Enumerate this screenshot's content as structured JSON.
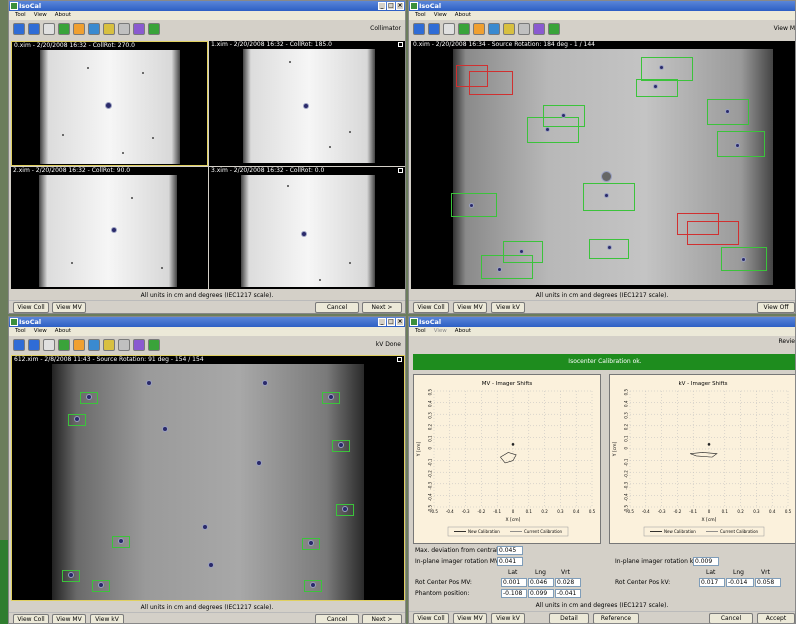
{
  "app_title": "IsoCal",
  "menu": [
    "Tool",
    "View",
    "About"
  ],
  "colors": {
    "title_blue": "#2d5fc4",
    "success_green": "#1e8c1e",
    "box_green": "#3bc33b",
    "box_red": "#d03030",
    "plot_bg": "#fbf1dc"
  },
  "toolbar_icons": [
    "save-icon",
    "open-icon",
    "zoom-icon",
    "pan-icon",
    "contrast-icon",
    "window-level-icon",
    "ruler-icon",
    "line-icon",
    "crosshair-icon",
    "overlay-icon"
  ],
  "units_note": "All units in cm and degrees (IEC1217 scale).",
  "w1": {
    "mode": "Collimator",
    "images": [
      {
        "caption": "0.xim - 2/20/2008 16:32 - CollRot: 270.0"
      },
      {
        "caption": "1.xim - 2/20/2008 16:32 - CollRot: 185.0"
      },
      {
        "caption": "2.xim - 2/20/2008 16:32 - CollRot: 90.0"
      },
      {
        "caption": "3.xim - 2/20/2008 16:32 - CollRot: 0.0"
      }
    ],
    "buttons": {
      "view_coll": "View Coll",
      "view_mv": "View MV",
      "cancel": "Cancel",
      "next": "Next >"
    }
  },
  "w2": {
    "mode": "View M",
    "caption": "0.xim - 2/20/2008 16:34 - Source Rotation: 184 deg - 1 / 144",
    "buttons": {
      "view_coll": "View Coll",
      "view_mv": "View MV",
      "view_kv": "View kV",
      "view_off": "View Off"
    }
  },
  "w3": {
    "mode": "kV Done",
    "caption": "612.xim - 2/8/2008 11:43 - Source Rotation: 91 deg - 154 / 154",
    "buttons": {
      "view_coll": "View Coll",
      "view_mv": "View MV",
      "view_kv": "View kV",
      "cancel": "Cancel",
      "next": "Next >"
    }
  },
  "w4": {
    "mode": "Revie",
    "menu": [
      "Tool",
      "View",
      "About"
    ],
    "banner": "Isocenter Calibration ok.",
    "mv_plot": {
      "title": "MV - Imager Shifts",
      "xlabel": "X [cm]",
      "ylabel": "Y [cm]"
    },
    "kv_plot": {
      "title": "kV - Imager Shifts",
      "xlabel": "X [cm]",
      "ylabel": "Y [cm]"
    },
    "legend": {
      "new": "New Calibration",
      "current": "Current Calibration"
    },
    "fields": {
      "max_dev_label": "Max. deviation from central be",
      "max_dev": "0.045",
      "rot_mv_label": "In-plane imager rotation MV:",
      "rot_mv": "0.041",
      "rot_kv_label": "In-plane imager rotation kV:",
      "rot_kv": "0.009",
      "col_lat": "Lat",
      "col_lng": "Lng",
      "col_vrt": "Vrt",
      "rcp_mv_label": "Rot Center Pos MV:",
      "rcp_mv": [
        "0.001",
        "0.046",
        "0.028"
      ],
      "phantom_label": "Phantom position:",
      "phantom": [
        "-0.108",
        "0.099",
        "-0.041"
      ],
      "rcp_kv_label": "Rot Center Pos kV:",
      "rcp_kv": [
        "0.017",
        "-0.014",
        "0.058"
      ]
    },
    "buttons": {
      "view_coll": "View Coll",
      "view_mv": "View MV",
      "view_kv": "View kV",
      "detail": "Detail",
      "reference": "Reference",
      "cancel": "Cancel",
      "accept": "Accept"
    }
  },
  "chart_data": [
    {
      "type": "line",
      "title": "MV - Imager Shifts",
      "xlabel": "X [cm]",
      "ylabel": "Y [cm]",
      "xlim": [
        -0.5,
        0.5
      ],
      "ylim": [
        -0.5,
        0.5
      ],
      "x_ticks": [
        "-0.5",
        "-0.4",
        "-0.3",
        "-0.2",
        "-0.1",
        "0",
        "0.1",
        "0.2",
        "0.3",
        "0.4",
        "0.5"
      ],
      "y_ticks": [
        "0.5",
        "0.4",
        "0.3",
        "0.2",
        "0.1",
        "0",
        "-0.1",
        "-0.2",
        "-0.3",
        "-0.4",
        "-0.5"
      ],
      "grid": true,
      "legend": "bottom",
      "series": [
        {
          "name": "New Calibration",
          "x": [
            -0.08,
            -0.03,
            0.02,
            0.0,
            -0.05,
            -0.08
          ],
          "y": [
            -0.07,
            -0.03,
            -0.05,
            -0.1,
            -0.12,
            -0.07
          ]
        },
        {
          "name": "Current Calibration",
          "x": [
            0.0
          ],
          "y": [
            0.04
          ]
        }
      ]
    },
    {
      "type": "line",
      "title": "kV - Imager Shifts",
      "xlabel": "X [cm]",
      "ylabel": "Y [cm]",
      "xlim": [
        -0.5,
        0.5
      ],
      "ylim": [
        -0.5,
        0.5
      ],
      "x_ticks": [
        "-0.5",
        "-0.4",
        "-0.3",
        "-0.2",
        "-0.1",
        "0",
        "0.1",
        "0.2",
        "0.3",
        "0.4",
        "0.5"
      ],
      "y_ticks": [
        "0.5",
        "0.4",
        "0.3",
        "0.2",
        "0.1",
        "0",
        "-0.1",
        "-0.2",
        "-0.3",
        "-0.4",
        "-0.5"
      ],
      "grid": true,
      "legend": "bottom",
      "series": [
        {
          "name": "New Calibration",
          "x": [
            -0.12,
            -0.04,
            0.05,
            0.02,
            -0.08,
            -0.12
          ],
          "y": [
            -0.04,
            -0.03,
            -0.04,
            -0.07,
            -0.06,
            -0.04
          ]
        },
        {
          "name": "Current Calibration",
          "x": [
            0.0
          ],
          "y": [
            0.04
          ]
        }
      ]
    }
  ]
}
